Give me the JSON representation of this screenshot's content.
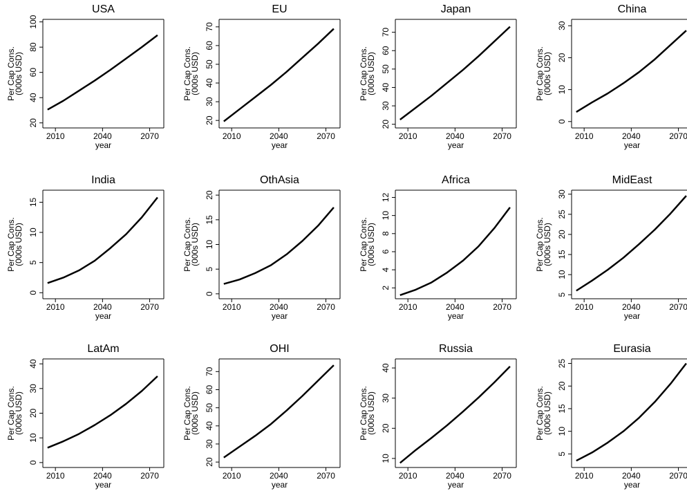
{
  "chart_data": [
    {
      "type": "line",
      "title": "USA",
      "ylabel": [
        "Per Cap Cons.",
        "(000s USD)"
      ],
      "xlabel": "year",
      "x": [
        2005,
        2015,
        2025,
        2035,
        2045,
        2055,
        2065,
        2075
      ],
      "values": [
        30.5,
        37.5,
        45.5,
        53.5,
        62,
        71,
        80,
        89.5
      ],
      "color": "#000000",
      "xlim": [
        2002,
        2079
      ],
      "xticks": [
        2010,
        2040,
        2070
      ],
      "ylim": [
        16,
        102
      ],
      "yticks": [
        20,
        40,
        60,
        80,
        100
      ]
    },
    {
      "type": "line",
      "title": "EU",
      "ylabel": [
        "Per Cap Cons.",
        "(000s USD)"
      ],
      "xlabel": "year",
      "x": [
        2005,
        2015,
        2025,
        2035,
        2045,
        2055,
        2065,
        2075
      ],
      "values": [
        19.5,
        26,
        32.5,
        39,
        46,
        53.5,
        61,
        69
      ],
      "color": "#000000",
      "xlim": [
        2002,
        2079
      ],
      "xticks": [
        2010,
        2040,
        2070
      ],
      "ylim": [
        16,
        74
      ],
      "yticks": [
        20,
        30,
        40,
        50,
        60,
        70
      ]
    },
    {
      "type": "line",
      "title": "Japan",
      "ylabel": [
        "Per Cap Cons.",
        "(000s USD)"
      ],
      "xlabel": "year",
      "x": [
        2005,
        2015,
        2025,
        2035,
        2045,
        2055,
        2065,
        2075
      ],
      "values": [
        22.5,
        29,
        35.5,
        42.5,
        49.5,
        57,
        65,
        73
      ],
      "color": "#000000",
      "xlim": [
        2002,
        2079
      ],
      "xticks": [
        2010,
        2040,
        2070
      ],
      "ylim": [
        18,
        77
      ],
      "yticks": [
        20,
        30,
        40,
        50,
        60,
        70
      ]
    },
    {
      "type": "line",
      "title": "China",
      "ylabel": [
        "Per Cap Cons.",
        "(000s USD)"
      ],
      "xlabel": "year",
      "x": [
        2005,
        2015,
        2025,
        2035,
        2045,
        2055,
        2065,
        2075
      ],
      "values": [
        3,
        6,
        8.8,
        12,
        15.5,
        19.5,
        24,
        28.5
      ],
      "color": "#000000",
      "xlim": [
        2002,
        2079
      ],
      "xticks": [
        2010,
        2040,
        2070
      ],
      "ylim": [
        -2,
        32
      ],
      "yticks": [
        0,
        10,
        20,
        30
      ]
    },
    {
      "type": "line",
      "title": "India",
      "ylabel": [
        "Per Cap Cons.",
        "(000s USD)"
      ],
      "xlabel": "year",
      "x": [
        2005,
        2015,
        2025,
        2035,
        2045,
        2055,
        2065,
        2075
      ],
      "values": [
        1.6,
        2.5,
        3.7,
        5.3,
        7.4,
        9.7,
        12.5,
        15.8
      ],
      "color": "#000000",
      "xlim": [
        2002,
        2079
      ],
      "xticks": [
        2010,
        2040,
        2070
      ],
      "ylim": [
        -1,
        17
      ],
      "yticks": [
        0,
        5,
        10,
        15
      ]
    },
    {
      "type": "line",
      "title": "OthAsia",
      "ylabel": [
        "Per Cap Cons.",
        "(000s USD)"
      ],
      "xlabel": "year",
      "x": [
        2005,
        2015,
        2025,
        2035,
        2045,
        2055,
        2065,
        2075
      ],
      "values": [
        2,
        2.9,
        4.2,
        5.8,
        8,
        10.7,
        13.8,
        17.5
      ],
      "color": "#000000",
      "xlim": [
        2002,
        2079
      ],
      "xticks": [
        2010,
        2040,
        2070
      ],
      "ylim": [
        -1,
        21
      ],
      "yticks": [
        0,
        5,
        10,
        15,
        20
      ]
    },
    {
      "type": "line",
      "title": "Africa",
      "ylabel": [
        "Per Cap Cons.",
        "(000s USD)"
      ],
      "xlabel": "year",
      "x": [
        2005,
        2015,
        2025,
        2035,
        2045,
        2055,
        2065,
        2075
      ],
      "values": [
        1.2,
        1.8,
        2.6,
        3.7,
        5,
        6.6,
        8.6,
        10.9
      ],
      "color": "#000000",
      "xlim": [
        2002,
        2079
      ],
      "xticks": [
        2010,
        2040,
        2070
      ],
      "ylim": [
        0.8,
        12.8
      ],
      "yticks": [
        2,
        4,
        6,
        8,
        10,
        12
      ]
    },
    {
      "type": "line",
      "title": "MidEast",
      "ylabel": [
        "Per Cap Cons.",
        "(000s USD)"
      ],
      "xlabel": "year",
      "x": [
        2005,
        2015,
        2025,
        2035,
        2045,
        2055,
        2065,
        2075
      ],
      "values": [
        6,
        8.5,
        11.2,
        14.2,
        17.6,
        21.2,
        25.2,
        29.6
      ],
      "color": "#000000",
      "xlim": [
        2002,
        2079
      ],
      "xticks": [
        2010,
        2040,
        2070
      ],
      "ylim": [
        4,
        31
      ],
      "yticks": [
        5,
        10,
        15,
        20,
        25,
        30
      ]
    },
    {
      "type": "line",
      "title": "LatAm",
      "ylabel": [
        "Per Cap Cons.",
        "(000s USD)"
      ],
      "xlabel": "year",
      "x": [
        2005,
        2015,
        2025,
        2035,
        2045,
        2055,
        2065,
        2075
      ],
      "values": [
        6,
        8.6,
        11.6,
        15.2,
        19.2,
        23.8,
        29,
        35
      ],
      "color": "#000000",
      "xlim": [
        2002,
        2079
      ],
      "xticks": [
        2010,
        2040,
        2070
      ],
      "ylim": [
        -2,
        42
      ],
      "yticks": [
        0,
        10,
        20,
        30,
        40
      ]
    },
    {
      "type": "line",
      "title": "OHI",
      "ylabel": [
        "Per Cap Cons.",
        "(000s USD)"
      ],
      "xlabel": "year",
      "x": [
        2005,
        2015,
        2025,
        2035,
        2045,
        2055,
        2065,
        2075
      ],
      "values": [
        22.5,
        28.5,
        34.5,
        41,
        48.5,
        56.5,
        65,
        73.5
      ],
      "color": "#000000",
      "xlim": [
        2002,
        2079
      ],
      "xticks": [
        2010,
        2040,
        2070
      ],
      "ylim": [
        17,
        77
      ],
      "yticks": [
        20,
        30,
        40,
        50,
        60,
        70
      ]
    },
    {
      "type": "line",
      "title": "Russia",
      "ylabel": [
        "Per Cap Cons.",
        "(000s USD)"
      ],
      "xlabel": "year",
      "x": [
        2005,
        2015,
        2025,
        2035,
        2045,
        2055,
        2065,
        2075
      ],
      "values": [
        8.5,
        12.8,
        16.8,
        21,
        25.5,
        30.2,
        35.2,
        40.5
      ],
      "color": "#000000",
      "xlim": [
        2002,
        2079
      ],
      "xticks": [
        2010,
        2040,
        2070
      ],
      "ylim": [
        7,
        43
      ],
      "yticks": [
        10,
        20,
        30,
        40
      ]
    },
    {
      "type": "line",
      "title": "Eurasia",
      "ylabel": [
        "Per Cap Cons.",
        "(000s USD)"
      ],
      "xlabel": "year",
      "x": [
        2005,
        2015,
        2025,
        2035,
        2045,
        2055,
        2065,
        2075
      ],
      "values": [
        3.5,
        5.3,
        7.5,
        10,
        13,
        16.5,
        20.5,
        25
      ],
      "color": "#000000",
      "xlim": [
        2002,
        2079
      ],
      "xticks": [
        2010,
        2040,
        2070
      ],
      "ylim": [
        2,
        26
      ],
      "yticks": [
        5,
        10,
        15,
        20,
        25
      ]
    }
  ]
}
